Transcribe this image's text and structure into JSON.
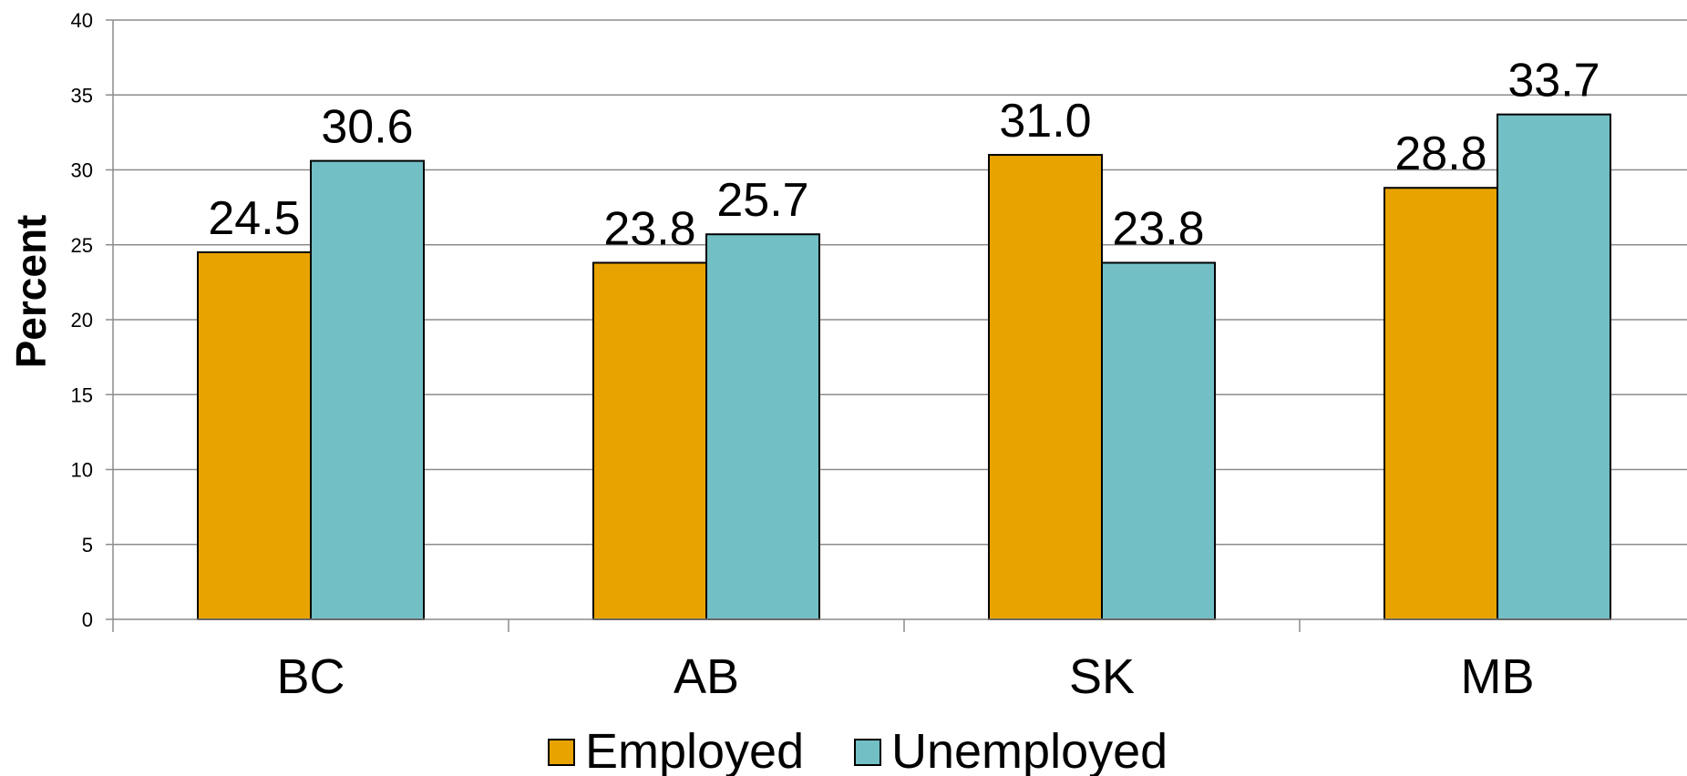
{
  "chart_data": {
    "type": "bar",
    "categories": [
      "BC",
      "AB",
      "SK",
      "MB"
    ],
    "series": [
      {
        "name": "Employed",
        "values": [
          24.5,
          23.8,
          31.0,
          28.8
        ],
        "labels": [
          "24.5",
          "23.8",
          "31.0",
          "28.8"
        ],
        "color": "#E8A300"
      },
      {
        "name": "Unemployed",
        "values": [
          30.6,
          25.7,
          23.8,
          33.7
        ],
        "labels": [
          "30.6",
          "25.7",
          "23.8",
          "33.7"
        ],
        "color": "#72BFC5"
      }
    ],
    "title": "",
    "xlabel": "",
    "ylabel": "Percent",
    "ylim": [
      0,
      40
    ],
    "yticks": [
      0,
      5,
      10,
      15,
      20,
      25,
      30,
      35,
      40
    ],
    "grid": true,
    "legend_position": "bottom"
  }
}
